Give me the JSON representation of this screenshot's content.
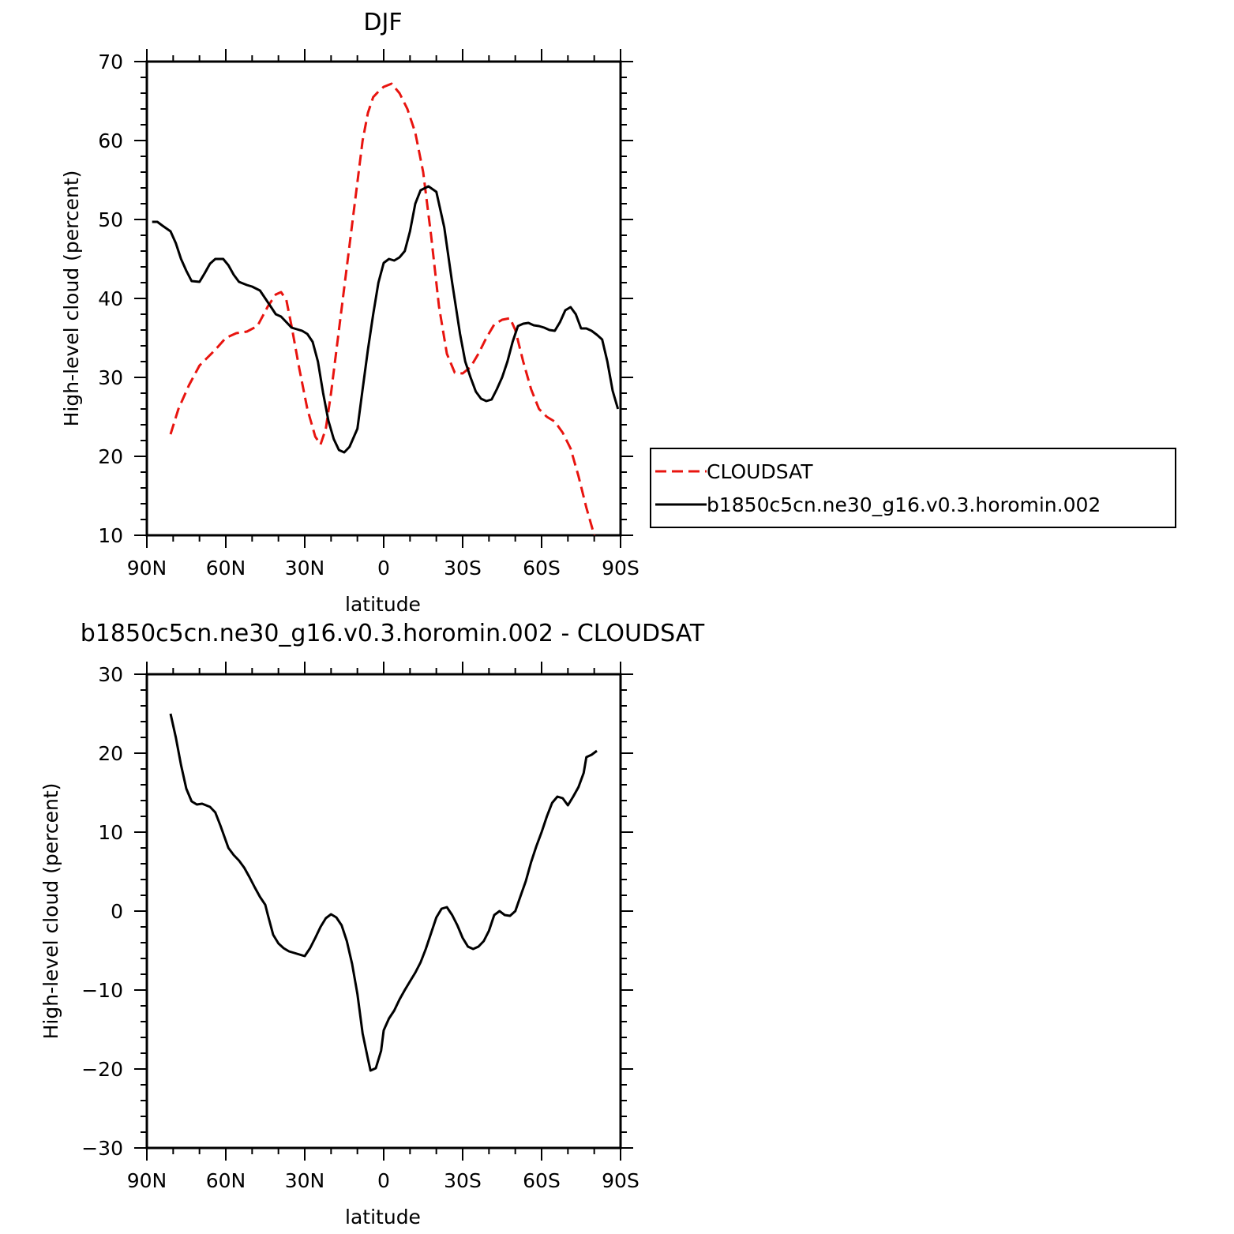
{
  "chart_data": [
    {
      "type": "line",
      "title": "DJF",
      "xlabel": "latitude",
      "ylabel": "High-level cloud (percent)",
      "xlim": [
        90,
        -90
      ],
      "ylim": [
        10,
        70
      ],
      "x_ticks": [
        90,
        60,
        30,
        0,
        -30,
        -60,
        -90
      ],
      "x_tick_labels": [
        "90N",
        "60N",
        "30N",
        "0",
        "30S",
        "60S",
        "90S"
      ],
      "y_ticks": [
        10,
        20,
        30,
        40,
        50,
        60,
        70
      ],
      "y_tick_labels": [
        "10",
        "20",
        "30",
        "40",
        "50",
        "60",
        "70"
      ],
      "legend_position": "right",
      "series": [
        {
          "name": "CLOUDSAT",
          "color": "#e8140f",
          "dash": "dashed",
          "x": [
            81,
            78,
            74,
            70,
            67,
            64,
            60,
            56,
            52,
            48,
            44,
            41,
            39,
            37,
            35,
            32,
            29,
            26,
            24,
            22,
            20,
            17,
            14,
            11,
            8,
            6,
            4,
            2,
            0,
            -3,
            -6,
            -9,
            -12,
            -15,
            -18,
            -21,
            -24,
            -27,
            -30,
            -33,
            -36,
            -39,
            -42,
            -45,
            -48,
            -50,
            -53,
            -56,
            -59,
            -62,
            -65,
            -68,
            -71,
            -74,
            -77,
            -80,
            -81
          ],
          "y": [
            22.8,
            26,
            29,
            31.5,
            32.5,
            33.5,
            35,
            35.6,
            35.8,
            36.5,
            39,
            40.5,
            40.8,
            39.8,
            36.5,
            31,
            26,
            22.5,
            21.5,
            23.5,
            28,
            36,
            44,
            52,
            60,
            63.5,
            65.5,
            66.2,
            66.8,
            67.2,
            66,
            64,
            61,
            56,
            48,
            39,
            33,
            30.6,
            30.5,
            31.3,
            33,
            35,
            36.7,
            37.3,
            37.5,
            36,
            32,
            28.5,
            26,
            25,
            24.4,
            23,
            21,
            17.5,
            13.5,
            10,
            9
          ]
        },
        {
          "name": "b1850c5cn.ne30_g16.v0.3.horomin.002",
          "color": "#000000",
          "dash": "solid",
          "x": [
            88,
            86,
            84,
            81,
            79,
            77,
            75,
            73,
            70,
            68,
            66,
            64,
            61,
            59,
            57,
            55,
            52,
            50,
            47,
            45,
            43,
            41,
            39,
            37,
            35,
            33,
            31,
            29,
            27,
            25,
            23,
            21,
            19,
            17,
            15,
            13,
            10,
            8,
            6,
            4,
            2,
            0,
            -2,
            -4,
            -6,
            -8,
            -10,
            -12,
            -14,
            -17,
            -20,
            -23,
            -26,
            -29,
            -31,
            -33,
            -35,
            -37,
            -39,
            -41,
            -43,
            -45,
            -47,
            -49,
            -51,
            -53,
            -55,
            -57,
            -59,
            -61,
            -63,
            -65,
            -67,
            -69,
            -71,
            -73,
            -75,
            -77,
            -79,
            -81,
            -83,
            -85,
            -87,
            -89
          ],
          "y": [
            49.7,
            49.7,
            49.2,
            48.5,
            47,
            45,
            43.5,
            42.2,
            42.1,
            43.2,
            44.4,
            45,
            45,
            44.2,
            43,
            42.1,
            41.7,
            41.5,
            41,
            40,
            39,
            38,
            37.7,
            37,
            36.3,
            36.1,
            35.9,
            35.5,
            34.5,
            32,
            28,
            24.5,
            22.2,
            20.8,
            20.5,
            21.2,
            23.5,
            28.5,
            33.5,
            38,
            42,
            44.5,
            45,
            44.8,
            45.2,
            46,
            48.5,
            52,
            53.7,
            54.2,
            53.5,
            49,
            42,
            35.5,
            32,
            30,
            28.2,
            27.3,
            27,
            27.2,
            28.5,
            30,
            32,
            34.5,
            36.5,
            36.8,
            36.9,
            36.6,
            36.5,
            36.3,
            36,
            35.9,
            37,
            38.5,
            38.9,
            38,
            36.2,
            36.2,
            35.9,
            35.4,
            34.8,
            32,
            28.3,
            26
          ]
        }
      ]
    },
    {
      "type": "line",
      "title": "b1850c5cn.ne30_g16.v0.3.horomin.002 - CLOUDSAT",
      "xlabel": "latitude",
      "ylabel": "High-level cloud (percent)",
      "xlim": [
        90,
        -90
      ],
      "ylim": [
        -30,
        30
      ],
      "x_ticks": [
        90,
        60,
        30,
        0,
        -30,
        -60,
        -90
      ],
      "x_tick_labels": [
        "90N",
        "60N",
        "30N",
        "0",
        "30S",
        "60S",
        "90S"
      ],
      "y_ticks": [
        -30,
        -20,
        -10,
        0,
        10,
        20,
        30
      ],
      "y_tick_labels": [
        "−30",
        "−20",
        "−10",
        "0",
        "10",
        "20",
        "30"
      ],
      "series": [
        {
          "color": "#000000",
          "dash": "solid",
          "x": [
            81,
            79,
            77,
            75,
            73,
            71,
            69,
            66,
            64,
            62,
            59,
            57,
            55,
            53,
            51,
            49,
            47,
            45,
            44,
            42,
            40,
            38,
            36,
            34,
            32,
            30,
            28,
            26,
            24,
            22,
            20,
            18,
            16,
            14,
            12,
            10,
            8,
            6,
            5,
            3,
            1,
            0,
            -2,
            -4,
            -6,
            -8,
            -10,
            -12,
            -14,
            -16,
            -18,
            -20,
            -22,
            -24,
            -26,
            -28,
            -30,
            -32,
            -34,
            -36,
            -38,
            -40,
            -42,
            -44,
            -46,
            -48,
            -50,
            -52,
            -54,
            -56,
            -58,
            -60,
            -62,
            -64,
            -66,
            -68,
            -70,
            -72,
            -74,
            -76,
            -77,
            -79,
            -81
          ],
          "y": [
            25,
            22,
            18.5,
            15.5,
            13.9,
            13.5,
            13.6,
            13.2,
            12.5,
            10.8,
            8,
            7.1,
            6.4,
            5.5,
            4.3,
            3,
            1.8,
            0.8,
            -0.5,
            -3,
            -4.1,
            -4.7,
            -5.1,
            -5.3,
            -5.5,
            -5.7,
            -4.7,
            -3.4,
            -2,
            -0.9,
            -0.4,
            -0.8,
            -1.8,
            -3.8,
            -6.7,
            -10.5,
            -15.5,
            -18.7,
            -20.2,
            -19.9,
            -17.7,
            -15.1,
            -13.6,
            -12.6,
            -11.2,
            -10,
            -8.9,
            -7.8,
            -6.5,
            -4.8,
            -2.8,
            -0.8,
            0.3,
            0.5,
            -0.5,
            -1.8,
            -3.4,
            -4.5,
            -4.8,
            -4.5,
            -3.8,
            -2.5,
            -0.5,
            0,
            -0.5,
            -0.6,
            0,
            1.9,
            3.8,
            6.2,
            8.2,
            10,
            12,
            13.7,
            14.5,
            14.3,
            13.4,
            14.5,
            15.7,
            17.5,
            19.5,
            19.8,
            20.3
          ]
        }
      ]
    }
  ]
}
